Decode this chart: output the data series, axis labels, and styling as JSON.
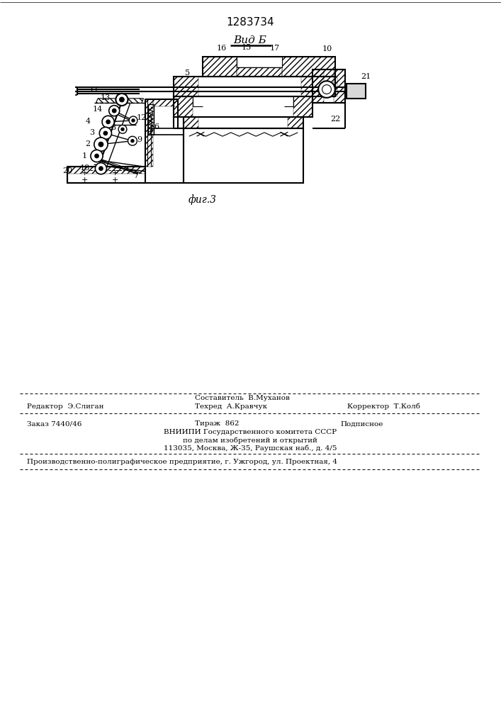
{
  "patent_number": "1283734",
  "view_label": "Вид Б",
  "fig_label": "фиг.3",
  "bg_color": "#ffffff",
  "line_color": "#000000",
  "editor_line": "Редактор  Э.Слиган",
  "composer_line": "Составитель  В.Муханов",
  "techred_line": "Техред  А.Кравчук",
  "corrector_line": "Корректор  Т.Колб",
  "order_line": "Заказ 7440/46",
  "tirazh_line": "Тираж  862",
  "podpisnoe_line": "Подписное",
  "vniishi_line": "ВНИИПИ Государственного комитета СССР",
  "affairs_line": "по делам изобретений и открытий",
  "address_line": "113035, Москва, Ж-35, Раушская наб., д. 4/5",
  "factory_line": "Производственно-полиграфическое предприятие, г. Ужгород, ул. Проектная, 4"
}
